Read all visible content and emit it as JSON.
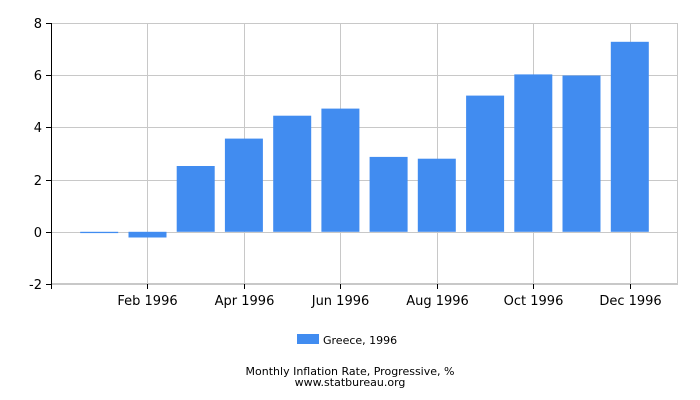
{
  "chart_data": {
    "type": "bar",
    "title": "Monthly Inflation Rate, Progressive, %",
    "source": "www.statbureau.org",
    "xlabel": "",
    "ylabel": "",
    "categories": [
      "Jan 1996",
      "Feb 1996",
      "Mar 1996",
      "Apr 1996",
      "May 1996",
      "Jun 1996",
      "Jul 1996",
      "Aug 1996",
      "Sep 1996",
      "Oct 1996",
      "Nov 1996",
      "Dec 1996"
    ],
    "x_tick_labels": [
      "Feb 1996",
      "Apr 1996",
      "Jun 1996",
      "Aug 1996",
      "Oct 1996",
      "Dec 1996"
    ],
    "series": [
      {
        "name": "Greece, 1996",
        "color": "#418cf0",
        "values": [
          -0.05,
          -0.22,
          2.52,
          3.57,
          4.45,
          4.72,
          2.87,
          2.8,
          5.22,
          6.03,
          5.99,
          7.28
        ]
      }
    ],
    "ylim": [
      -2,
      8
    ],
    "y_ticks": [
      -2,
      0,
      2,
      4,
      6,
      8
    ],
    "grid": true,
    "legend_position": "bottom-center"
  }
}
